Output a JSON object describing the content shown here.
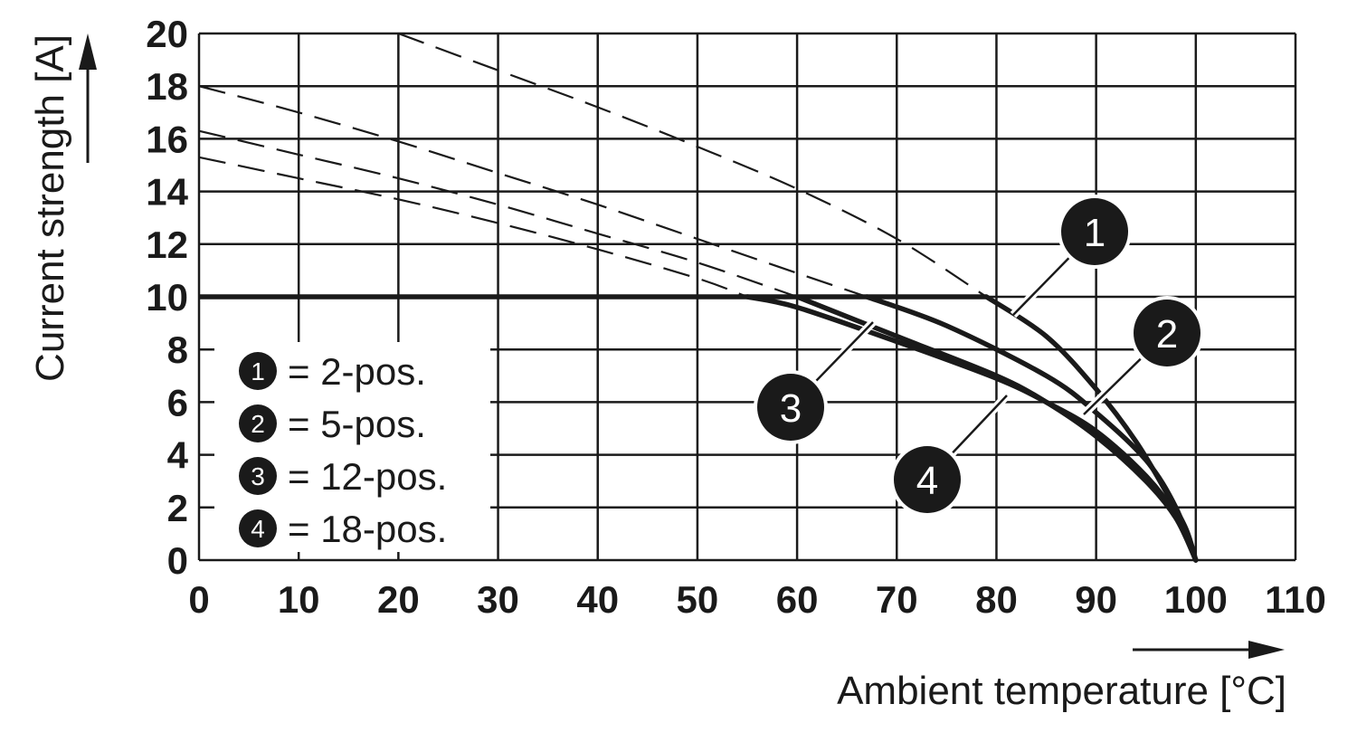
{
  "chart_data": {
    "type": "line",
    "xlabel": "Ambient temperature [°C]",
    "ylabel": "Current strength [A]",
    "xlim": [
      0,
      110
    ],
    "ylim": [
      0,
      20
    ],
    "x_ticks": [
      0,
      10,
      20,
      30,
      40,
      50,
      60,
      70,
      80,
      90,
      100,
      110
    ],
    "y_ticks": [
      0,
      2,
      4,
      6,
      8,
      10,
      12,
      14,
      16,
      18,
      20
    ],
    "grid": true,
    "legend_position": "bottom-left",
    "cap_value": 10,
    "series": [
      {
        "name": "1",
        "label": "= 2-pos.",
        "dashed": {
          "x": [
            20,
            30,
            40,
            50,
            60,
            70,
            79
          ],
          "y": [
            20,
            18.6,
            17.2,
            15.7,
            14.1,
            12.2,
            10
          ]
        },
        "solid": {
          "x": [
            0,
            79,
            85,
            90,
            94,
            97,
            99,
            100
          ],
          "y": [
            10,
            10,
            8.5,
            6.5,
            4.5,
            2.6,
            1.2,
            0
          ]
        }
      },
      {
        "name": "2",
        "label": "= 5-pos.",
        "dashed": {
          "x": [
            0,
            10,
            20,
            30,
            40,
            50,
            60,
            67
          ],
          "y": [
            18,
            17,
            15.9,
            14.7,
            13.5,
            12.2,
            10.9,
            10
          ]
        },
        "solid": {
          "x": [
            0,
            67,
            75,
            85,
            90,
            95,
            98,
            100
          ],
          "y": [
            10,
            10,
            8.9,
            7.0,
            5.6,
            3.8,
            2.0,
            0
          ]
        }
      },
      {
        "name": "3",
        "label": "= 12-pos.",
        "dashed": {
          "x": [
            0,
            10,
            20,
            30,
            40,
            50,
            60
          ],
          "y": [
            16.3,
            15.4,
            14.5,
            13.5,
            12.4,
            11.3,
            10
          ]
        },
        "solid": {
          "x": [
            0,
            60,
            70,
            80,
            85,
            90,
            95,
            98,
            100
          ],
          "y": [
            10,
            10,
            8.5,
            7.0,
            6.0,
            4.7,
            3.0,
            1.6,
            0
          ]
        }
      },
      {
        "name": "4",
        "label": "= 18-pos.",
        "dashed": {
          "x": [
            0,
            10,
            20,
            30,
            40,
            50,
            55
          ],
          "y": [
            15.3,
            14.5,
            13.7,
            12.8,
            11.8,
            10.7,
            10
          ]
        },
        "solid": {
          "x": [
            0,
            55,
            60,
            70,
            80,
            85,
            90,
            95,
            98,
            100
          ],
          "y": [
            10,
            10,
            9.6,
            8.3,
            6.9,
            6.0,
            4.9,
            3.2,
            1.7,
            0
          ]
        }
      }
    ]
  }
}
